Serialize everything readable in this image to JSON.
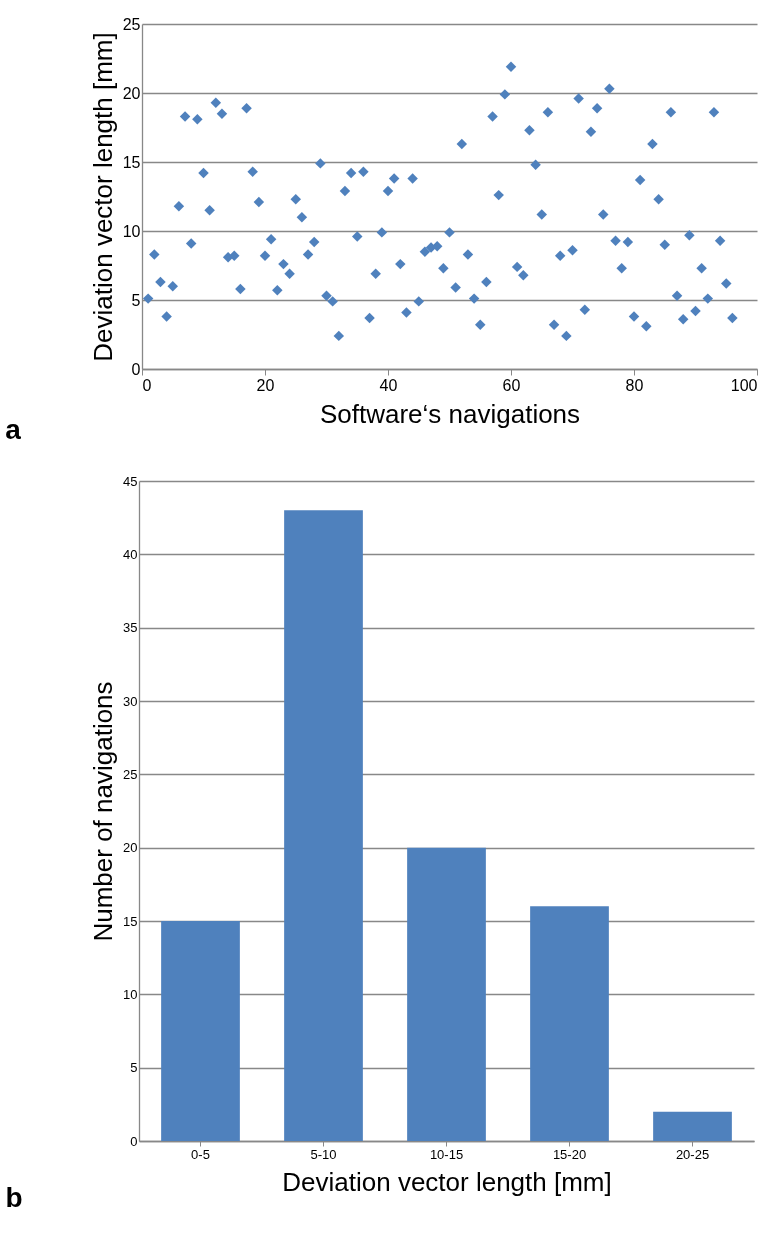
{
  "chart_data": [
    {
      "type": "scatter",
      "xlabel": "Software‘s navigations",
      "ylabel": "Deviation vector length [mm]",
      "annotations": [
        "a"
      ],
      "x": [
        1,
        2,
        3,
        4,
        5,
        6,
        7,
        8,
        9,
        10,
        11,
        12,
        13,
        14,
        15,
        16,
        17,
        18,
        19,
        20,
        21,
        22,
        23,
        24,
        25,
        26,
        27,
        28,
        29,
        30,
        31,
        32,
        33,
        34,
        35,
        36,
        37,
        38,
        39,
        40,
        41,
        42,
        43,
        44,
        45,
        46,
        47,
        48,
        49,
        50,
        51,
        52,
        53,
        54,
        55,
        56,
        57,
        58,
        59,
        60,
        61,
        62,
        63,
        64,
        65,
        66,
        67,
        68,
        69,
        70,
        71,
        72,
        73,
        74,
        75,
        76,
        77,
        78,
        79,
        80,
        81,
        82,
        83,
        84,
        85,
        86,
        87,
        88,
        89,
        90,
        91,
        92,
        93,
        94,
        95,
        96
      ],
      "values": [
        5.1,
        8.3,
        6.3,
        3.8,
        6.0,
        11.8,
        18.3,
        9.1,
        18.1,
        14.2,
        11.5,
        19.3,
        18.5,
        8.1,
        8.2,
        5.8,
        18.9,
        14.3,
        12.1,
        8.2,
        9.4,
        5.7,
        7.6,
        6.9,
        12.3,
        11.0,
        8.3,
        9.2,
        14.9,
        5.3,
        4.9,
        2.4,
        12.9,
        14.2,
        9.6,
        14.3,
        3.7,
        6.9,
        9.9,
        12.9,
        13.8,
        7.6,
        4.1,
        13.8,
        4.9,
        8.5,
        8.8,
        8.9,
        7.3,
        9.9,
        5.9,
        16.3,
        8.3,
        5.1,
        3.2,
        6.3,
        18.3,
        12.6,
        19.9,
        21.9,
        7.4,
        6.8,
        17.3,
        14.8,
        11.2,
        18.6,
        3.2,
        8.2,
        2.4,
        8.6,
        19.6,
        4.3,
        17.2,
        18.9,
        11.2,
        20.3,
        9.3,
        7.3,
        9.2,
        3.8,
        13.7,
        3.1,
        16.3,
        12.3,
        9.0,
        18.6,
        5.3,
        3.6,
        9.7,
        4.2,
        7.3,
        5.1,
        18.6,
        9.3,
        6.2,
        3.7
      ],
      "color": "#4f81bd",
      "marker": "diamond",
      "xlim": [
        0,
        100
      ],
      "xticks": [
        0,
        20,
        40,
        60,
        80,
        100
      ],
      "ylim": [
        0,
        25
      ],
      "yticks": [
        0,
        5,
        10,
        15,
        20,
        25
      ],
      "grid": "y"
    },
    {
      "type": "bar",
      "xlabel": "Deviation vector length [mm]",
      "ylabel": "Number of navigations",
      "annotations": [
        "b"
      ],
      "categories": [
        "0-5",
        "5-10",
        "10-15",
        "15-20",
        "20-25"
      ],
      "values": [
        15,
        43,
        20,
        16,
        2
      ],
      "color": "#4f81bd",
      "ylim": [
        0,
        45
      ],
      "yticks": [
        0,
        5,
        10,
        15,
        20,
        25,
        30,
        35,
        40,
        45
      ],
      "grid": "y"
    }
  ]
}
